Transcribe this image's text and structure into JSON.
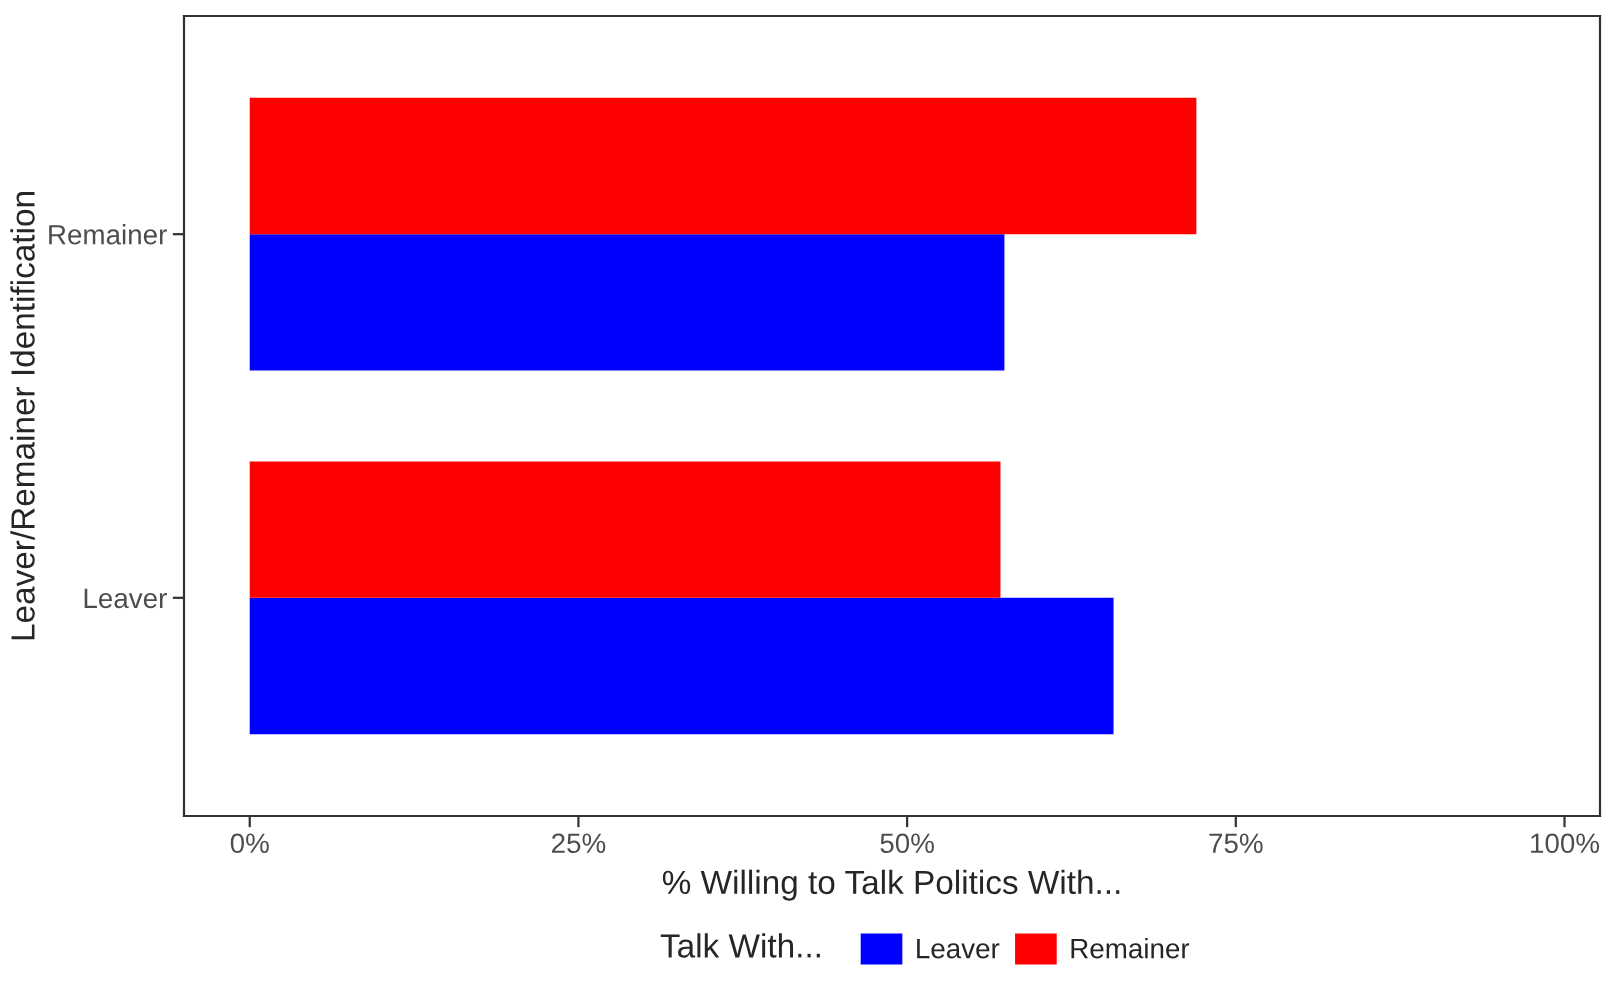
{
  "chart_data": {
    "type": "bar",
    "orientation": "horizontal",
    "xlabel": "% Willing to Talk Politics With...",
    "ylabel": "Leaver/Remainer Identification",
    "legend_title": "Talk With...",
    "legend": "bottom",
    "grid": false,
    "categories": [
      "Remainer",
      "Leaver"
    ],
    "series": [
      {
        "name": "Leaver",
        "color": "#0000ff",
        "values": [
          57.4,
          65.7
        ]
      },
      {
        "name": "Remainer",
        "color": "#ff0000",
        "values": [
          72.0,
          57.1
        ]
      }
    ],
    "xlim": [
      -5,
      102.7
    ],
    "xticks": [
      {
        "value": 0,
        "label": "0%"
      },
      {
        "value": 25,
        "label": "25%"
      },
      {
        "value": 50,
        "label": "50%"
      },
      {
        "value": 75,
        "label": "75%"
      },
      {
        "value": 100,
        "label": "100%"
      }
    ]
  }
}
